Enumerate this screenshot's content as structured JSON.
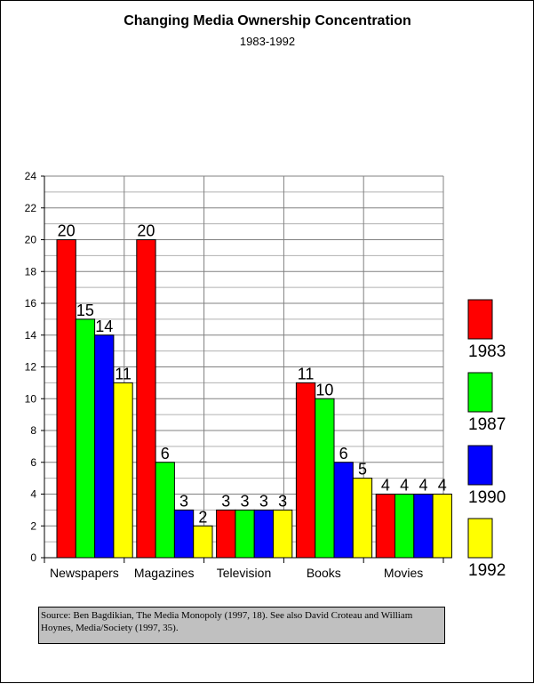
{
  "chart_data": {
    "type": "bar",
    "title": "Changing Media Ownership Concentration",
    "subtitle": "1983-1992",
    "xlabel": "",
    "ylabel": "",
    "ylim": [
      0,
      24
    ],
    "yticks": [
      0,
      2,
      4,
      6,
      8,
      10,
      12,
      14,
      16,
      18,
      20,
      22,
      24
    ],
    "grid": true,
    "legend_position": "right",
    "categories": [
      "Newspapers",
      "Magazines",
      "Television",
      "Books",
      "Movies"
    ],
    "series": [
      {
        "name": "1983",
        "color": "#ff0000",
        "values": [
          20,
          20,
          3,
          11,
          4
        ]
      },
      {
        "name": "1987",
        "color": "#00ff00",
        "values": [
          15,
          6,
          3,
          10,
          4
        ]
      },
      {
        "name": "1990",
        "color": "#0000ff",
        "values": [
          14,
          3,
          3,
          6,
          4
        ]
      },
      {
        "name": "1992",
        "color": "#ffff00",
        "values": [
          11,
          2,
          3,
          5,
          4
        ]
      }
    ],
    "source_note": "Source: Ben Bagdikian, The Media Monopoly (1997, 18).   See also David Croteau and William Hoynes, Media/Society (1997, 35)."
  }
}
